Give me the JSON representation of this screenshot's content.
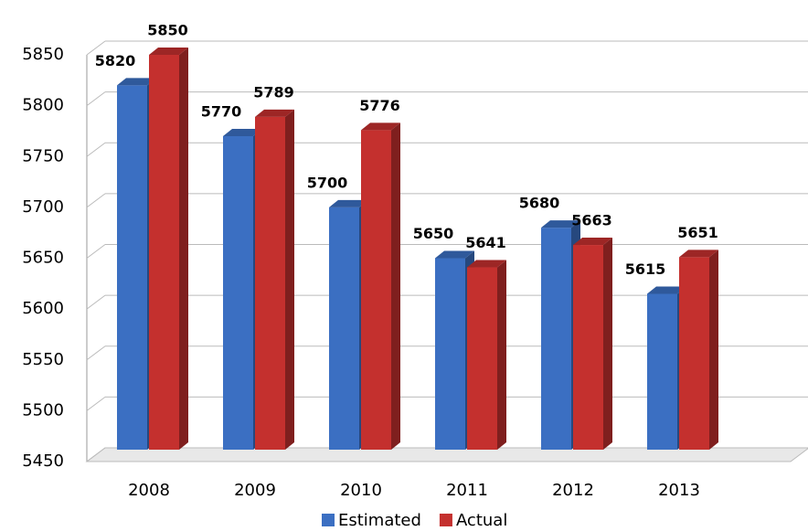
{
  "chart_data": {
    "type": "bar3d",
    "categories": [
      "2008",
      "2009",
      "2010",
      "2011",
      "2012",
      "2013"
    ],
    "series": [
      {
        "name": "Estimated",
        "color": "#3b6fc2",
        "label_color": "#1f6fc0",
        "values": [
          5820,
          5770,
          5700,
          5650,
          5680,
          5615
        ]
      },
      {
        "name": "Actual",
        "color": "#c4302e",
        "label_color": "#c00000",
        "values": [
          5850,
          5789,
          5776,
          5641,
          5663,
          5651
        ]
      }
    ],
    "ylim": [
      5450,
      5850
    ],
    "yticks": [
      5450,
      5500,
      5550,
      5600,
      5650,
      5700,
      5750,
      5800,
      5850
    ],
    "grid": true
  }
}
